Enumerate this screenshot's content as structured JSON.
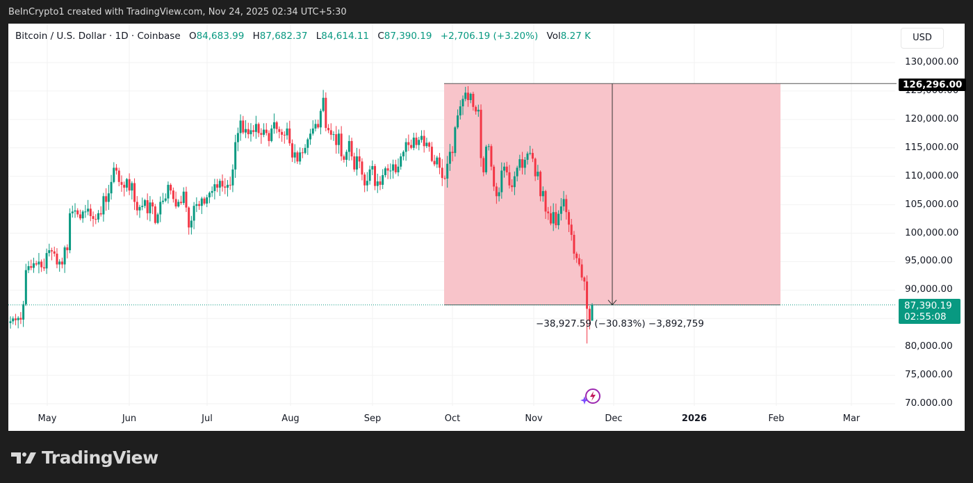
{
  "header": {
    "attribution": "BeInCrypto1 created with TradingView.com, Nov 24, 2025 02:34 UTC+5:30"
  },
  "legend": {
    "symbol": "Bitcoin / U.S. Dollar · 1D · Coinbase",
    "open_label": "O",
    "open": "84,683.99",
    "high_label": "H",
    "high": "87,682.37",
    "low_label": "L",
    "low": "84,614.11",
    "close_label": "C",
    "close": "87,390.19",
    "change": "+2,706.19 (+3.20%)",
    "vol_label": "Vol",
    "vol": "8.27 K"
  },
  "price_axis": {
    "currency_button": "USD",
    "ticks": [
      "130,000.00",
      "125,000.00",
      "120,000.00",
      "115,000.00",
      "110,000.00",
      "105,000.00",
      "100,000.00",
      "95,000.00",
      "90,000.00",
      "80,000.00",
      "75,000.00",
      "70.000.00"
    ],
    "high_marker": "126,296.00",
    "last_price": "87,390.19",
    "countdown": "02:55:08"
  },
  "time_axis": {
    "labels": [
      "May",
      "Jun",
      "Jul",
      "Aug",
      "Sep",
      "Oct",
      "Nov",
      "Dec",
      "2026",
      "Feb",
      "Mar"
    ]
  },
  "measurement": {
    "label": "−38,927.59 (−30.83%) −3,892,759"
  },
  "footer": {
    "brand": "TradingView"
  },
  "colors": {
    "up": "#089981",
    "down": "#f23645",
    "measure_fill": "#f8c4ca",
    "background": "#ffffff",
    "frame": "#1e1e1e"
  },
  "chart_data": {
    "type": "candlestick",
    "title": "Bitcoin / U.S. Dollar · 1D · Coinbase",
    "xlabel": "",
    "ylabel": "USD",
    "ylim": [
      68000,
      132000
    ],
    "grid": true,
    "x_range": [
      "2025-04-18",
      "2026-03-20"
    ],
    "annotations": [
      {
        "type": "price_range",
        "from": 126296.0,
        "to": 87390.19,
        "change": -38927.59,
        "change_pct": -30.83,
        "ticks": -3892759,
        "x_start": "2025-09-27",
        "x_end": "2026-01-31"
      },
      {
        "type": "horizontal_line",
        "value": 126296.0
      },
      {
        "type": "last_price_line",
        "value": 87390.19
      }
    ],
    "last_bar": {
      "date": "2025-11-24",
      "open": 84683.99,
      "high": 87682.37,
      "low": 84614.11,
      "close": 87390.19,
      "change": 2706.19,
      "change_pct": 3.2,
      "volume": "8.27K"
    },
    "monthly_closes_approx": [
      {
        "month": "2025-04",
        "close": 94200
      },
      {
        "month": "2025-05",
        "close": 104600
      },
      {
        "month": "2025-06",
        "close": 107100
      },
      {
        "month": "2025-07",
        "close": 115700
      },
      {
        "month": "2025-08",
        "close": 108200
      },
      {
        "month": "2025-09",
        "close": 114000
      },
      {
        "month": "2025-10",
        "close": 109500
      },
      {
        "month": "2025-11-24",
        "close": 87390
      }
    ],
    "closes": [
      84500,
      85000,
      84700,
      85100,
      84800,
      87500,
      93500,
      94200,
      93900,
      94700,
      94500,
      95000,
      94000,
      93800,
      96500,
      97000,
      96800,
      96400,
      94500,
      95000,
      94500,
      97500,
      97000,
      103500,
      103800,
      104000,
      103300,
      102600,
      103800,
      103800,
      104300,
      103000,
      102500,
      102400,
      103500,
      103300,
      106500,
      105500,
      107000,
      109000,
      111500,
      111000,
      109000,
      108500,
      108000,
      109500,
      107500,
      108800,
      105500,
      104000,
      104600,
      104800,
      105800,
      103500,
      105400,
      104700,
      101800,
      103300,
      105500,
      105700,
      106100,
      108500,
      107500,
      106000,
      104700,
      105500,
      105300,
      107300,
      104500,
      101000,
      102200,
      104800,
      105100,
      104800,
      106100,
      105200,
      106300,
      107100,
      107400,
      108600,
      108000,
      109200,
      108200,
      108000,
      108500,
      108400,
      111200,
      116000,
      117600,
      119800,
      117700,
      118300,
      117400,
      118100,
      117800,
      119200,
      117600,
      117300,
      118200,
      117600,
      116200,
      118400,
      119500,
      118300,
      117800,
      117300,
      117200,
      118400,
      115800,
      113300,
      114200,
      112600,
      114200,
      114100,
      115000,
      116500,
      117500,
      118400,
      119200,
      118600,
      121500,
      123800,
      118500,
      118100,
      117300,
      117400,
      115500,
      117500,
      113500,
      112900,
      114300,
      116200,
      113500,
      111200,
      113500,
      112600,
      110300,
      108400,
      109200,
      111200,
      111800,
      108300,
      109100,
      108500,
      110200,
      111400,
      111000,
      111000,
      112100,
      110700,
      111700,
      113500,
      114300,
      116000,
      115500,
      115000,
      116800,
      115500,
      116400,
      117100,
      115300,
      115900,
      115200,
      112700,
      112100,
      113300,
      111500,
      109700,
      109600,
      112200,
      114300,
      114100,
      118600,
      120700,
      122300,
      123600,
      124700,
      123400,
      124500,
      122200,
      121400,
      121700,
      113200,
      110700,
      115200,
      115300,
      111700,
      108200,
      106500,
      107200,
      111000,
      111700,
      110700,
      108400,
      108100,
      110000,
      111500,
      113000,
      111500,
      112900,
      114000,
      114100,
      113100,
      110000,
      110800,
      106500,
      107400,
      103800,
      103500,
      101700,
      103700,
      101400,
      103400,
      104700,
      106000,
      103700,
      101500,
      99700,
      96400,
      95600,
      94500,
      92200,
      91500,
      86700,
      84600,
      87390
    ]
  }
}
